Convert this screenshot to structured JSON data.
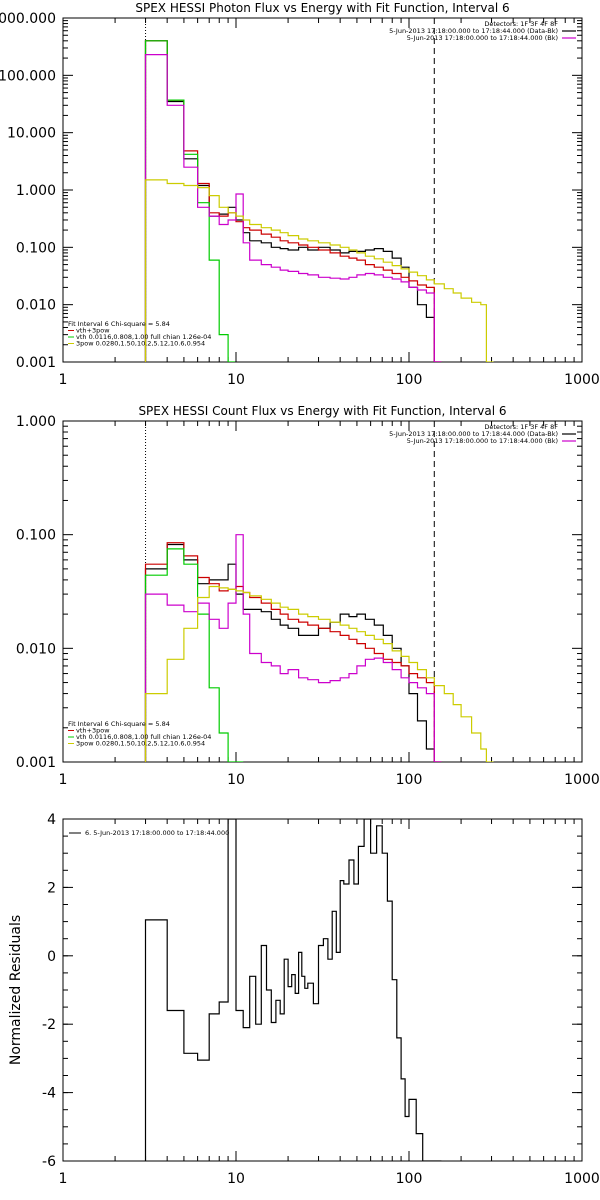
{
  "chart_data": [
    {
      "type": "line",
      "title": "SPEX HESSI Photon Flux vs Energy with Fit Function, Interval 6",
      "xlabel": "",
      "ylabel": "",
      "xscale": "log",
      "yscale": "log",
      "xlim": [
        1,
        1000
      ],
      "ylim": [
        0.001,
        1000
      ],
      "x_ticks": [
        {
          "v": 1,
          "label": "1"
        },
        {
          "v": 10,
          "label": "10"
        },
        {
          "v": 100,
          "label": "100"
        },
        {
          "v": 1000,
          "label": "1000"
        }
      ],
      "y_ticks": [
        {
          "v": 1000,
          "label": "1000.000"
        },
        {
          "v": 100,
          "label": "100.000"
        },
        {
          "v": 10,
          "label": "10.000"
        },
        {
          "v": 1,
          "label": "1.000"
        },
        {
          "v": 0.1,
          "label": "0.100"
        },
        {
          "v": 0.01,
          "label": "0.010"
        },
        {
          "v": 0.001,
          "label": "0.001"
        }
      ],
      "vlines": [
        {
          "x": 3,
          "style": "dotted"
        },
        {
          "x": 140,
          "style": "dashed"
        }
      ],
      "legend_top_right": [
        {
          "text": "Detectors: 1F 3F 4F 8F",
          "color": "#000000"
        },
        {
          "text": "5-Jun-2013 17:18:00.000 to 17:18:44.000 (Data-Bk)",
          "color": "#000000"
        },
        {
          "text": "5-Jun-2013 17:18:00.000 to 17:18:44.000 (Bk)",
          "color": "#cc00cc"
        }
      ],
      "legend_bottom_left": [
        {
          "text": "Fit Interval 6   Chi-square = 5.84",
          "color": "#000000"
        },
        {
          "text": "vth+3pow",
          "color": "#cc0000"
        },
        {
          "text": "vth 0.0116,0.808,1.00  full chian 1.26e-04",
          "color": "#00cc00"
        },
        {
          "text": "3pow 0.0280,1.50,10.2,5.12,10.6,0.954",
          "color": "#cccc00"
        }
      ],
      "series": [
        {
          "color": "#000000",
          "x": [
            3,
            4,
            5,
            6,
            7,
            8,
            9,
            10,
            11,
            12,
            14,
            16,
            18,
            20,
            23,
            26,
            30,
            35,
            40,
            45,
            50,
            56,
            63,
            71,
            80,
            90,
            100,
            112,
            126,
            140
          ],
          "values": [
            400,
            35,
            3.5,
            1.2,
            0.35,
            0.38,
            0.5,
            0.3,
            0.18,
            0.13,
            0.12,
            0.1,
            0.095,
            0.09,
            0.1,
            0.09,
            0.1,
            0.09,
            0.08,
            0.085,
            0.085,
            0.09,
            0.095,
            0.085,
            0.065,
            0.045,
            0.02,
            0.01,
            0.006,
            0.001
          ]
        },
        {
          "color": "#cc0000",
          "x": [
            3,
            4,
            5,
            6,
            7,
            8,
            9,
            10,
            11,
            12,
            14,
            16,
            18,
            20,
            23,
            26,
            30,
            35,
            40,
            45,
            50,
            56,
            63,
            71,
            80,
            90,
            100,
            112,
            126,
            140
          ],
          "values": [
            400,
            37,
            4.8,
            1.3,
            0.4,
            0.35,
            0.4,
            0.28,
            0.22,
            0.2,
            0.17,
            0.15,
            0.13,
            0.12,
            0.11,
            0.1,
            0.09,
            0.08,
            0.07,
            0.065,
            0.06,
            0.05,
            0.045,
            0.04,
            0.035,
            0.03,
            0.026,
            0.022,
            0.02,
            0.001
          ]
        },
        {
          "color": "#00cc00",
          "x": [
            3,
            4,
            5,
            6,
            7,
            8,
            9
          ],
          "values": [
            400,
            37,
            4.2,
            0.6,
            0.06,
            0.003,
            0.001
          ]
        },
        {
          "color": "#cc00cc",
          "x": [
            3,
            4,
            5,
            6,
            7,
            8,
            9,
            10,
            11,
            12,
            14,
            16,
            18,
            20,
            23,
            26,
            30,
            35,
            40,
            45,
            50,
            56,
            63,
            71,
            80,
            90,
            100,
            112,
            126,
            140
          ],
          "values": [
            230,
            30,
            2.5,
            0.5,
            0.35,
            0.25,
            0.3,
            0.85,
            0.12,
            0.06,
            0.05,
            0.045,
            0.04,
            0.038,
            0.035,
            0.033,
            0.03,
            0.029,
            0.028,
            0.03,
            0.033,
            0.035,
            0.033,
            0.03,
            0.028,
            0.025,
            0.02,
            0.018,
            0.016,
            0.001
          ]
        },
        {
          "color": "#cccc00",
          "x": [
            3,
            4,
            5,
            6,
            7,
            8,
            9,
            10,
            11,
            12,
            14,
            16,
            18,
            20,
            23,
            26,
            30,
            35,
            40,
            45,
            50,
            56,
            63,
            71,
            80,
            90,
            100,
            112,
            126,
            140,
            160,
            180,
            200,
            230,
            260,
            280
          ],
          "values": [
            1.5,
            1.3,
            1.2,
            1.1,
            0.8,
            0.5,
            0.4,
            0.35,
            0.3,
            0.25,
            0.22,
            0.2,
            0.18,
            0.16,
            0.14,
            0.13,
            0.12,
            0.11,
            0.1,
            0.09,
            0.08,
            0.07,
            0.063,
            0.055,
            0.048,
            0.042,
            0.037,
            0.032,
            0.027,
            0.023,
            0.019,
            0.016,
            0.013,
            0.011,
            0.01,
            0.001
          ]
        }
      ]
    },
    {
      "type": "line",
      "title": "SPEX HESSI Count Flux vs Energy with Fit Function, Interval 6",
      "xlabel": "",
      "ylabel": "",
      "xscale": "log",
      "yscale": "log",
      "xlim": [
        1,
        1000
      ],
      "ylim": [
        0.001,
        1
      ],
      "x_ticks": [
        {
          "v": 1,
          "label": "1"
        },
        {
          "v": 10,
          "label": "10"
        },
        {
          "v": 100,
          "label": "100"
        },
        {
          "v": 1000,
          "label": "1000"
        }
      ],
      "y_ticks": [
        {
          "v": 1,
          "label": "1.000"
        },
        {
          "v": 0.1,
          "label": "0.100"
        },
        {
          "v": 0.01,
          "label": "0.010"
        },
        {
          "v": 0.001,
          "label": "0.001"
        }
      ],
      "vlines": [
        {
          "x": 3,
          "style": "dotted"
        },
        {
          "x": 140,
          "style": "dashed"
        }
      ],
      "legend_top_right": [
        {
          "text": "Detectors: 1F 3F 4F 8F",
          "color": "#000000"
        },
        {
          "text": "5-Jun-2013 17:18:00.000 to 17:18:44.000 (Data-Bk)",
          "color": "#000000"
        },
        {
          "text": "5-Jun-2013 17:18:00.000 to 17:18:44.000 (Bk)",
          "color": "#cc00cc"
        }
      ],
      "legend_bottom_left": [
        {
          "text": "Fit Interval 6   Chi-square = 5.84",
          "color": "#000000"
        },
        {
          "text": "vth+3pow",
          "color": "#cc0000"
        },
        {
          "text": "vth 0.0116,0.808,1.00  full chian 1.26e-04",
          "color": "#00cc00"
        },
        {
          "text": "3pow 0.0280,1.50,10.2,5.12,10.6,0.954",
          "color": "#cccc00"
        }
      ],
      "series": [
        {
          "color": "#000000",
          "x": [
            3,
            4,
            5,
            6,
            7,
            8,
            9,
            10,
            11,
            12,
            14,
            16,
            18,
            20,
            23,
            26,
            30,
            35,
            40,
            45,
            50,
            56,
            63,
            71,
            80,
            90,
            100,
            112,
            126,
            140
          ],
          "values": [
            0.05,
            0.082,
            0.06,
            0.037,
            0.04,
            0.04,
            0.055,
            0.03,
            0.022,
            0.022,
            0.021,
            0.018,
            0.016,
            0.015,
            0.013,
            0.013,
            0.015,
            0.017,
            0.02,
            0.019,
            0.02,
            0.018,
            0.016,
            0.013,
            0.01,
            0.007,
            0.004,
            0.0023,
            0.0013,
            0.001
          ]
        },
        {
          "color": "#cc0000",
          "x": [
            3,
            4,
            5,
            6,
            7,
            8,
            9,
            10,
            11,
            12,
            14,
            16,
            18,
            20,
            23,
            26,
            30,
            35,
            40,
            45,
            50,
            56,
            63,
            71,
            80,
            90,
            100,
            112,
            126,
            140
          ],
          "values": [
            0.055,
            0.085,
            0.065,
            0.042,
            0.037,
            0.032,
            0.033,
            0.035,
            0.031,
            0.028,
            0.025,
            0.022,
            0.02,
            0.018,
            0.017,
            0.016,
            0.015,
            0.014,
            0.013,
            0.012,
            0.011,
            0.01,
            0.009,
            0.008,
            0.0075,
            0.007,
            0.006,
            0.0055,
            0.005,
            0.001
          ]
        },
        {
          "color": "#00cc00",
          "x": [
            3,
            4,
            5,
            6,
            7,
            8,
            9,
            10
          ],
          "values": [
            0.044,
            0.075,
            0.055,
            0.02,
            0.0045,
            0.0018,
            0.001,
            0.001
          ]
        },
        {
          "color": "#cc00cc",
          "x": [
            3,
            4,
            5,
            6,
            7,
            8,
            9,
            10,
            11,
            12,
            14,
            16,
            18,
            20,
            23,
            26,
            30,
            35,
            40,
            45,
            50,
            56,
            63,
            71,
            80,
            90,
            100,
            112,
            126,
            140
          ],
          "values": [
            0.03,
            0.024,
            0.021,
            0.025,
            0.018,
            0.015,
            0.025,
            0.1,
            0.02,
            0.009,
            0.0075,
            0.007,
            0.006,
            0.0065,
            0.0055,
            0.0053,
            0.005,
            0.0052,
            0.0055,
            0.006,
            0.007,
            0.008,
            0.0082,
            0.0075,
            0.0065,
            0.0055,
            0.005,
            0.0045,
            0.004,
            0.001
          ]
        },
        {
          "color": "#cccc00",
          "x": [
            3,
            4,
            5,
            6,
            7,
            8,
            9,
            10,
            11,
            12,
            14,
            16,
            18,
            20,
            23,
            26,
            30,
            35,
            40,
            45,
            50,
            56,
            63,
            71,
            80,
            90,
            100,
            112,
            126,
            140,
            160,
            180,
            200,
            230,
            260,
            280
          ],
          "values": [
            0.004,
            0.008,
            0.015,
            0.028,
            0.035,
            0.034,
            0.033,
            0.032,
            0.031,
            0.029,
            0.027,
            0.025,
            0.023,
            0.022,
            0.02,
            0.019,
            0.018,
            0.017,
            0.016,
            0.015,
            0.014,
            0.013,
            0.012,
            0.011,
            0.0095,
            0.0085,
            0.0075,
            0.0065,
            0.0055,
            0.0047,
            0.004,
            0.0032,
            0.0025,
            0.0018,
            0.0013,
            0.001
          ]
        }
      ]
    },
    {
      "type": "line",
      "title": "",
      "xlabel": "",
      "ylabel": "Normalized Residuals",
      "xscale": "log",
      "yscale": "linear",
      "xlim": [
        1,
        1000
      ],
      "ylim": [
        -6,
        4
      ],
      "x_ticks": [
        {
          "v": 1,
          "label": "1"
        },
        {
          "v": 10,
          "label": "10"
        },
        {
          "v": 100,
          "label": "100"
        },
        {
          "v": 1000,
          "label": "1000"
        }
      ],
      "y_ticks": [
        {
          "v": 4,
          "label": "4"
        },
        {
          "v": 2,
          "label": "2"
        },
        {
          "v": 0,
          "label": "0"
        },
        {
          "v": -2,
          "label": "-2"
        },
        {
          "v": -4,
          "label": "-4"
        },
        {
          "v": -6,
          "label": "-6"
        }
      ],
      "vlines": [],
      "legend_top_left": [
        {
          "text": "6. 5-Jun-2013 17:18:00.000 to 17:18:44.000",
          "color": "#000000"
        }
      ],
      "series": [
        {
          "color": "#000000",
          "x": [
            3,
            4,
            5,
            6,
            7,
            8,
            9,
            10,
            11,
            12,
            13,
            14,
            15,
            16,
            17,
            18,
            19,
            20,
            21,
            22,
            23,
            24,
            25,
            26,
            28,
            30,
            32,
            34,
            36,
            38,
            40,
            42,
            45,
            48,
            51,
            55,
            60,
            65,
            70,
            75,
            80,
            85,
            90,
            95,
            100,
            110,
            120,
            140
          ],
          "values": [
            1.05,
            -1.6,
            -2.85,
            -3.05,
            -1.7,
            -1.35,
            4.0,
            -1.6,
            -2.1,
            -0.6,
            -2.0,
            0.3,
            -1.0,
            -1.95,
            -1.3,
            -1.7,
            -0.1,
            -0.9,
            -0.55,
            -1.1,
            0.1,
            -0.6,
            -0.95,
            -0.8,
            -1.4,
            0.3,
            0.5,
            -0.1,
            1.3,
            0.1,
            2.2,
            2.1,
            2.8,
            2.1,
            3.2,
            4.0,
            3.0,
            3.8,
            3.0,
            1.6,
            -0.7,
            -2.4,
            -3.6,
            -4.7,
            -4.2,
            -5.2,
            -6.0,
            -6.0
          ]
        }
      ]
    }
  ]
}
